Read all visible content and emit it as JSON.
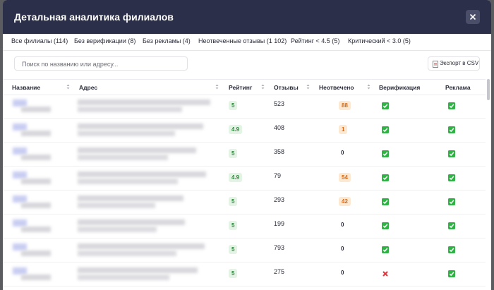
{
  "header": {
    "title": "Детальная аналитика филиалов"
  },
  "tabs": [
    "Все филиалы (114)",
    "Без верификации (8)",
    "Без рекламы (4)",
    "Неотвеченные отзывы (1 102)",
    "Рейтинг < 4.5 (5)",
    "Критический < 3.0 (5)"
  ],
  "search": {
    "placeholder": "Поиск по названию или адресу..."
  },
  "export_button": {
    "label": "Экспорт в CSV"
  },
  "table": {
    "columns": [
      {
        "label": "Название",
        "sortable": true
      },
      {
        "label": "Адрес",
        "sortable": true
      },
      {
        "label": "Рейтинг",
        "sortable": true
      },
      {
        "label": "Отзывы",
        "sortable": true
      },
      {
        "label": "Неотвечено",
        "sortable": true
      },
      {
        "label": "Верификация",
        "sortable": false
      },
      {
        "label": "Реклама",
        "sortable": false
      }
    ],
    "rows": [
      {
        "rating": 5,
        "reviews": 523,
        "unanswered": 88,
        "verified": true,
        "advertised": true
      },
      {
        "rating": 4.9,
        "reviews": 408,
        "unanswered": 1,
        "verified": true,
        "advertised": true
      },
      {
        "rating": 5,
        "reviews": 358,
        "unanswered": 0,
        "verified": true,
        "advertised": true
      },
      {
        "rating": 4.9,
        "reviews": 79,
        "unanswered": 54,
        "verified": true,
        "advertised": true
      },
      {
        "rating": 5,
        "reviews": 293,
        "unanswered": 42,
        "verified": true,
        "advertised": true
      },
      {
        "rating": 5,
        "reviews": 199,
        "unanswered": 0,
        "verified": true,
        "advertised": true
      },
      {
        "rating": 5,
        "reviews": 793,
        "unanswered": 0,
        "verified": true,
        "advertised": true
      },
      {
        "rating": 5,
        "reviews": 275,
        "unanswered": 0,
        "verified": false,
        "advertised": true
      }
    ]
  }
}
